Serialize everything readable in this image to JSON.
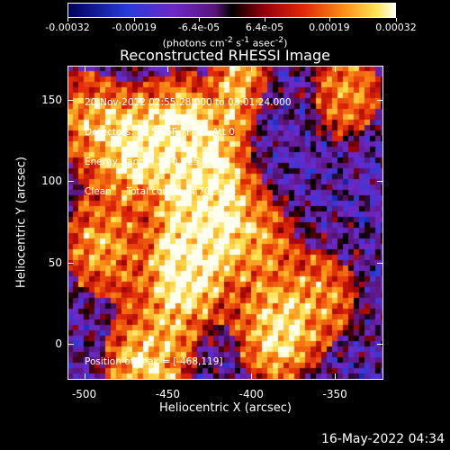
{
  "colorbar": {
    "tick_labels": [
      "-0.00032",
      "-0.00019",
      "-6.4e-05",
      "6.4e-05",
      "0.00019",
      "0.00032"
    ],
    "units_html": "(photons cm<sup>-2</sup> s<sup>-1</sup> asec<sup>-2</sup>)",
    "range": [
      -0.00032,
      0.00032
    ]
  },
  "chart_data": {
    "type": "heatmap",
    "title": "Reconstructed RHESSI Image",
    "xlabel": "Heliocentric X (arcsec)",
    "ylabel": "Heliocentric Y (arcsec)",
    "xlim": [
      -510,
      -321
    ],
    "ylim": [
      -22,
      171
    ],
    "xticks": [
      -500,
      -450,
      -400,
      -350
    ],
    "yticks": [
      0,
      50,
      100,
      150
    ],
    "colormap": "blue-white-red-yellow (diverging)",
    "annotations": [
      "20-Nov-2012 02:55:28.000 to 03:01:24.000",
      "Detectors: 3F 5F 6F 7F 8F, Att 0",
      "Energy Range: 12.0 - 25.0 keV",
      "Clean     Total counts: 4.70E+03"
    ],
    "peak_label": "Position of Peak = [-468,119]",
    "bright_regions": [
      {
        "x": -470,
        "y": 120,
        "level": 0.95
      },
      {
        "x": -432,
        "y": 68,
        "level": 0.95
      },
      {
        "x": -425,
        "y": 100,
        "level": 0.9
      },
      {
        "x": -438,
        "y": 135,
        "level": 0.85
      },
      {
        "x": -385,
        "y": 5,
        "level": 0.9
      },
      {
        "x": -442,
        "y": 35,
        "level": 0.82
      },
      {
        "x": -465,
        "y": -15,
        "level": 0.9
      },
      {
        "x": -490,
        "y": 60,
        "level": 0.7
      },
      {
        "x": -395,
        "y": 65,
        "level": 0.55
      },
      {
        "x": -343,
        "y": 155,
        "level": 0.65
      },
      {
        "x": -355,
        "y": 30,
        "level": 0.55
      },
      {
        "x": -500,
        "y": 140,
        "level": 0.6
      }
    ]
  },
  "timestamp": "16-May-2022 04:34"
}
